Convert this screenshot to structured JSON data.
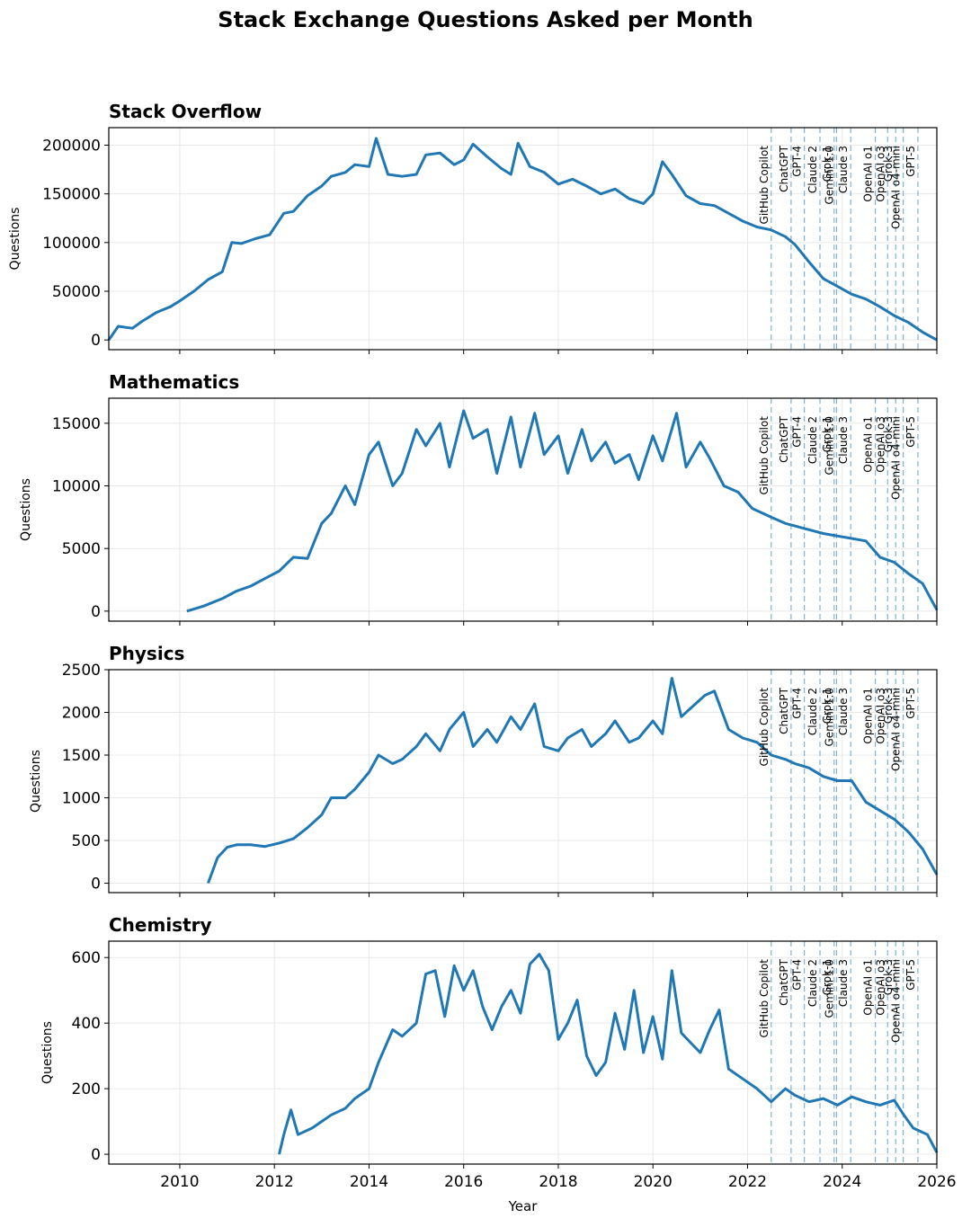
{
  "title": "Stack Exchange Questions Asked per Month",
  "xlabel": "Year",
  "xlim": [
    2008.5,
    2026.0
  ],
  "x_ticks": [
    2010,
    2012,
    2014,
    2016,
    2018,
    2020,
    2022,
    2024,
    2026
  ],
  "colors": {
    "line": "#1f77b4",
    "event_line": "#7fb2d6",
    "grid": "#e8e8e8"
  },
  "events": [
    {
      "label": "GitHub Copilot",
      "x": 2022.5
    },
    {
      "label": "ChatGPT",
      "x": 2022.92
    },
    {
      "label": "GPT-4",
      "x": 2023.2
    },
    {
      "label": "Claude 2",
      "x": 2023.53
    },
    {
      "label": "Gemini 1.0",
      "x": 2023.88
    },
    {
      "label": "Grok-1",
      "x": 2023.83
    },
    {
      "label": "Claude 3",
      "x": 2024.18
    },
    {
      "label": "OpenAI o1",
      "x": 2024.7
    },
    {
      "label": "OpenAI o3",
      "x": 2024.96
    },
    {
      "label": "Grok-3",
      "x": 2025.13
    },
    {
      "label": "OpenAI o4-mini",
      "x": 2025.29
    },
    {
      "label": "GPT-5",
      "x": 2025.6
    }
  ],
  "chart_data": [
    {
      "type": "line",
      "title": "Stack Overflow",
      "ylabel": "Questions",
      "ylim": [
        -10000,
        218000
      ],
      "yticks": [
        0,
        50000,
        100000,
        150000,
        200000
      ],
      "x": [
        2008.5,
        2008.7,
        2009.0,
        2009.2,
        2009.5,
        2009.8,
        2010.0,
        2010.3,
        2010.6,
        2010.9,
        2011.1,
        2011.3,
        2011.6,
        2011.9,
        2012.2,
        2012.4,
        2012.7,
        2013.0,
        2013.2,
        2013.5,
        2013.7,
        2014.0,
        2014.15,
        2014.4,
        2014.7,
        2015.0,
        2015.2,
        2015.5,
        2015.8,
        2016.0,
        2016.2,
        2016.5,
        2016.8,
        2017.0,
        2017.15,
        2017.4,
        2017.7,
        2018.0,
        2018.3,
        2018.6,
        2018.9,
        2019.2,
        2019.5,
        2019.8,
        2020.0,
        2020.2,
        2020.4,
        2020.7,
        2021.0,
        2021.3,
        2021.6,
        2021.9,
        2022.2,
        2022.5,
        2022.8,
        2023.0,
        2023.3,
        2023.6,
        2023.9,
        2024.2,
        2024.5,
        2024.8,
        2025.1,
        2025.4,
        2025.7,
        2026.0
      ],
      "values": [
        0,
        14000,
        12000,
        19000,
        28000,
        34000,
        40000,
        50000,
        62000,
        70000,
        100000,
        99000,
        104000,
        108000,
        130000,
        132000,
        148000,
        158000,
        168000,
        172000,
        180000,
        178000,
        207000,
        170000,
        168000,
        170000,
        190000,
        192000,
        180000,
        185000,
        201000,
        188000,
        176000,
        170000,
        202000,
        178000,
        172000,
        160000,
        165000,
        158000,
        150000,
        155000,
        145000,
        140000,
        150000,
        183000,
        170000,
        148000,
        140000,
        138000,
        130000,
        122000,
        116000,
        113000,
        106000,
        98000,
        80000,
        63000,
        55000,
        47000,
        42000,
        34000,
        25000,
        18000,
        8000,
        0
      ]
    },
    {
      "type": "line",
      "title": "Mathematics",
      "ylabel": "Questions",
      "ylim": [
        -800,
        17000
      ],
      "yticks": [
        0,
        5000,
        10000,
        15000
      ],
      "x": [
        2010.15,
        2010.5,
        2010.9,
        2011.2,
        2011.5,
        2011.8,
        2012.1,
        2012.4,
        2012.7,
        2013.0,
        2013.2,
        2013.5,
        2013.7,
        2014.0,
        2014.2,
        2014.5,
        2014.7,
        2015.0,
        2015.2,
        2015.5,
        2015.7,
        2016.0,
        2016.2,
        2016.5,
        2016.7,
        2017.0,
        2017.2,
        2017.5,
        2017.7,
        2018.0,
        2018.2,
        2018.5,
        2018.7,
        2019.0,
        2019.2,
        2019.5,
        2019.7,
        2020.0,
        2020.2,
        2020.5,
        2020.7,
        2021.0,
        2021.2,
        2021.5,
        2021.8,
        2022.1,
        2022.5,
        2022.8,
        2023.0,
        2023.3,
        2023.6,
        2023.9,
        2024.2,
        2024.5,
        2024.8,
        2025.1,
        2025.4,
        2025.7,
        2026.0
      ],
      "values": [
        0,
        400,
        1000,
        1600,
        2000,
        2600,
        3200,
        4300,
        4200,
        7000,
        7800,
        10000,
        8500,
        12500,
        13500,
        10000,
        11000,
        14500,
        13200,
        15000,
        11500,
        16000,
        13800,
        14500,
        11000,
        15500,
        11500,
        15800,
        12500,
        14000,
        11000,
        14500,
        12000,
        13500,
        11800,
        12500,
        10500,
        14000,
        12000,
        15800,
        11500,
        13500,
        12200,
        10000,
        9500,
        8200,
        7500,
        7000,
        6800,
        6500,
        6200,
        6000,
        5800,
        5600,
        4300,
        3900,
        3000,
        2200,
        100
      ]
    },
    {
      "type": "line",
      "title": "Physics",
      "ylabel": "Questions",
      "ylim": [
        -110,
        2500
      ],
      "yticks": [
        0,
        500,
        1000,
        1500,
        2000,
        2500
      ],
      "x": [
        2010.6,
        2010.8,
        2011.0,
        2011.2,
        2011.5,
        2011.8,
        2012.1,
        2012.4,
        2012.7,
        2013.0,
        2013.2,
        2013.5,
        2013.7,
        2014.0,
        2014.2,
        2014.5,
        2014.7,
        2015.0,
        2015.2,
        2015.5,
        2015.7,
        2016.0,
        2016.2,
        2016.5,
        2016.7,
        2017.0,
        2017.2,
        2017.5,
        2017.7,
        2018.0,
        2018.2,
        2018.5,
        2018.7,
        2019.0,
        2019.2,
        2019.5,
        2019.7,
        2020.0,
        2020.2,
        2020.4,
        2020.6,
        2020.9,
        2021.1,
        2021.3,
        2021.6,
        2021.9,
        2022.2,
        2022.5,
        2022.8,
        2023.0,
        2023.3,
        2023.6,
        2023.9,
        2024.2,
        2024.5,
        2024.8,
        2025.1,
        2025.4,
        2025.7,
        2026.0
      ],
      "values": [
        0,
        300,
        420,
        450,
        450,
        430,
        470,
        520,
        650,
        800,
        1000,
        1000,
        1100,
        1300,
        1500,
        1400,
        1450,
        1600,
        1750,
        1550,
        1800,
        2000,
        1600,
        1800,
        1650,
        1950,
        1800,
        2100,
        1600,
        1550,
        1700,
        1800,
        1600,
        1750,
        1900,
        1650,
        1700,
        1900,
        1750,
        2400,
        1950,
        2100,
        2200,
        2250,
        1800,
        1700,
        1650,
        1500,
        1450,
        1400,
        1350,
        1250,
        1200,
        1200,
        950,
        850,
        750,
        600,
        400,
        100
      ]
    },
    {
      "type": "line",
      "title": "Chemistry",
      "ylabel": "Questions",
      "ylim": [
        -30,
        650
      ],
      "yticks": [
        0,
        200,
        400,
        600
      ],
      "x": [
        2012.1,
        2012.2,
        2012.35,
        2012.5,
        2012.8,
        2013.0,
        2013.2,
        2013.5,
        2013.7,
        2014.0,
        2014.2,
        2014.5,
        2014.7,
        2015.0,
        2015.2,
        2015.4,
        2015.6,
        2015.8,
        2016.0,
        2016.2,
        2016.4,
        2016.6,
        2016.8,
        2017.0,
        2017.2,
        2017.4,
        2017.6,
        2017.8,
        2018.0,
        2018.2,
        2018.4,
        2018.6,
        2018.8,
        2019.0,
        2019.2,
        2019.4,
        2019.6,
        2019.8,
        2020.0,
        2020.2,
        2020.4,
        2020.6,
        2020.8,
        2021.0,
        2021.2,
        2021.4,
        2021.6,
        2021.9,
        2022.2,
        2022.5,
        2022.8,
        2023.0,
        2023.3,
        2023.6,
        2023.9,
        2024.2,
        2024.5,
        2024.8,
        2025.1,
        2025.3,
        2025.5,
        2025.8,
        2026.0
      ],
      "values": [
        0,
        60,
        135,
        60,
        80,
        100,
        120,
        140,
        170,
        200,
        280,
        380,
        360,
        400,
        550,
        560,
        420,
        575,
        500,
        560,
        450,
        380,
        450,
        500,
        430,
        580,
        610,
        560,
        350,
        400,
        470,
        300,
        240,
        280,
        430,
        320,
        500,
        310,
        420,
        290,
        560,
        370,
        340,
        310,
        380,
        440,
        260,
        230,
        200,
        160,
        200,
        180,
        160,
        170,
        150,
        175,
        160,
        150,
        165,
        120,
        80,
        60,
        5
      ]
    }
  ]
}
